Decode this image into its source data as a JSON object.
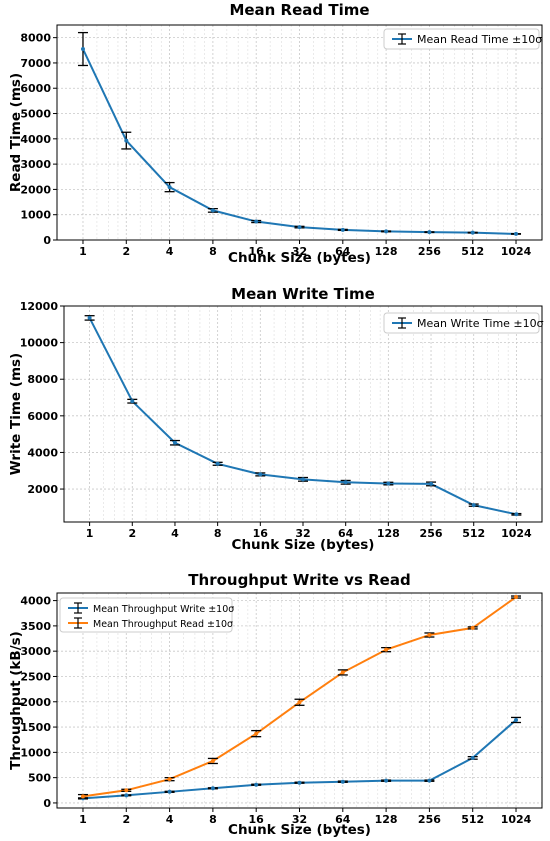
{
  "chart_data": [
    {
      "type": "line",
      "title": "Mean Read Time",
      "xlabel": "Chunk Size (bytes)",
      "ylabel": "Read Time (ms)",
      "xscale": "log2",
      "x": [
        1,
        2,
        4,
        8,
        16,
        32,
        64,
        128,
        256,
        512,
        1024
      ],
      "xticks": [
        "1",
        "2",
        "4",
        "8",
        "16",
        "32",
        "64",
        "128",
        "256",
        "512",
        "1024"
      ],
      "ylim": [
        0,
        8500
      ],
      "yticks": [
        "0",
        "1000",
        "2000",
        "3000",
        "4000",
        "5000",
        "6000",
        "7000",
        "8000"
      ],
      "yticks_values": [
        0,
        1000,
        2000,
        3000,
        4000,
        5000,
        6000,
        7000,
        8000
      ],
      "grid": true,
      "legend": "top-right",
      "series": [
        {
          "name": "Mean Read Time ±10σ",
          "color": "#1f77b4",
          "values": [
            7550,
            3930,
            2090,
            1170,
            730,
            510,
            400,
            340,
            310,
            290,
            240
          ],
          "errors": [
            650,
            330,
            180,
            70,
            40,
            30,
            20,
            15,
            12,
            12,
            10
          ]
        }
      ]
    },
    {
      "type": "line",
      "title": "Mean Write Time",
      "xlabel": "Chunk Size (bytes)",
      "ylabel": "Write Time (ms)",
      "xscale": "log2",
      "x": [
        1,
        2,
        4,
        8,
        16,
        32,
        64,
        128,
        256,
        512,
        1024
      ],
      "xticks": [
        "1",
        "2",
        "4",
        "8",
        "16",
        "32",
        "64",
        "128",
        "256",
        "512",
        "1024"
      ],
      "ylim": [
        200,
        12000
      ],
      "yticks": [
        "2000",
        "4000",
        "6000",
        "8000",
        "10000",
        "12000"
      ],
      "yticks_values": [
        2000,
        4000,
        6000,
        8000,
        10000,
        12000
      ],
      "grid": true,
      "legend": "top-right",
      "series": [
        {
          "name": "Mean Write Time ±10σ",
          "color": "#1f77b4",
          "values": [
            11350,
            6800,
            4530,
            3380,
            2800,
            2530,
            2370,
            2300,
            2280,
            1120,
            620
          ],
          "errors": [
            120,
            100,
            120,
            80,
            80,
            100,
            100,
            70,
            100,
            60,
            40
          ]
        }
      ]
    },
    {
      "type": "line",
      "title": "Throughput Write vs Read",
      "xlabel": "Chunk Size (bytes)",
      "ylabel": "Throughput (kB/s)",
      "xscale": "log2",
      "x": [
        1,
        2,
        4,
        8,
        16,
        32,
        64,
        128,
        256,
        512,
        1024
      ],
      "xticks": [
        "1",
        "2",
        "4",
        "8",
        "16",
        "32",
        "64",
        "128",
        "256",
        "512",
        "1024"
      ],
      "ylim": [
        -100,
        4150
      ],
      "yticks": [
        "0",
        "500",
        "1000",
        "1500",
        "2000",
        "2500",
        "3000",
        "3500",
        "4000"
      ],
      "yticks_values": [
        0,
        500,
        1000,
        1500,
        2000,
        2500,
        3000,
        3500,
        4000
      ],
      "grid": true,
      "legend": "top-left",
      "series": [
        {
          "name": "Mean Throughput Write ±10σ",
          "color": "#1f77b4",
          "values": [
            90,
            150,
            220,
            290,
            360,
            400,
            420,
            440,
            440,
            890,
            1640
          ],
          "errors": [
            10,
            8,
            10,
            10,
            10,
            10,
            12,
            12,
            12,
            25,
            50
          ]
        },
        {
          "name": "Mean Throughput Read ±10σ",
          "color": "#ff7f0e",
          "values": [
            130,
            250,
            470,
            830,
            1370,
            1990,
            2580,
            3030,
            3320,
            3460,
            4070
          ],
          "errors": [
            35,
            20,
            30,
            50,
            60,
            60,
            50,
            40,
            40,
            20,
            20
          ]
        }
      ]
    }
  ]
}
